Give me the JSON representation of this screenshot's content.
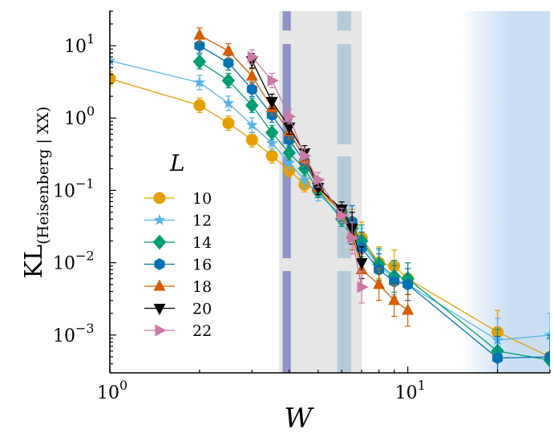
{
  "chart_data": {
    "type": "line",
    "xlabel": "W",
    "ylabel": "KL",
    "ylabel_subscript": "(Heisenberg | XX)",
    "xscale": "log",
    "yscale": "log",
    "xlim": [
      1,
      30
    ],
    "ylim": [
      0.0003,
      30
    ],
    "xticks": [
      {
        "value": 1,
        "base": "10",
        "exp": "0"
      },
      {
        "value": 10,
        "base": "10",
        "exp": "1"
      }
    ],
    "yticks": [
      {
        "value": 0.001,
        "base": "10",
        "exp": "−3"
      },
      {
        "value": 0.01,
        "base": "10",
        "exp": "−2"
      },
      {
        "value": 0.1,
        "base": "10",
        "exp": "−1"
      },
      {
        "value": 1,
        "base": "10",
        "exp": "0"
      },
      {
        "value": 10,
        "base": "10",
        "exp": "1"
      }
    ],
    "legend_title": "L",
    "legend_position": "center-left",
    "bands": [
      {
        "name": "grey-region",
        "x0": 3.7,
        "x1": 7.0,
        "color": "#e6e6e6"
      },
      {
        "name": "purple-dashed-band",
        "x0": 3.8,
        "x1": 4.05,
        "color": "#8f93c6",
        "dashed": true
      },
      {
        "name": "teal-dashed-band",
        "x0": 5.8,
        "x1": 6.45,
        "color": "#b5ccd8",
        "dashed": true
      },
      {
        "name": "blue-gradient-region",
        "x0": 15,
        "x1": 30,
        "color": "#c9def3",
        "gradient": true
      }
    ],
    "series": [
      {
        "name": "10",
        "color": "#e69f00",
        "marker": "circle",
        "x": [
          1,
          2,
          2.5,
          3,
          3.5,
          4,
          4.5,
          5,
          6,
          6.5,
          7,
          8,
          9,
          10,
          20,
          30
        ],
        "y": [
          3.5,
          1.5,
          0.85,
          0.5,
          0.3,
          0.19,
          0.12,
          0.1,
          0.05,
          0.033,
          0.022,
          0.01,
          0.009,
          0.006,
          0.0011,
          0.0005
        ]
      },
      {
        "name": "12",
        "color": "#56b4e9",
        "marker": "star",
        "x": [
          1,
          2,
          2.5,
          3,
          3.5,
          4,
          4.5,
          5,
          6,
          6.5,
          7,
          8,
          9,
          10,
          20,
          30
        ],
        "y": [
          6.2,
          3.1,
          1.6,
          0.8,
          0.45,
          0.24,
          0.14,
          0.09,
          0.045,
          0.03,
          0.018,
          0.009,
          0.006,
          0.005,
          0.00085,
          0.001
        ]
      },
      {
        "name": "14",
        "color": "#009e73",
        "marker": "diamond",
        "x": [
          2,
          2.5,
          3,
          3.5,
          4,
          4.5,
          5,
          6,
          6.5,
          7,
          8,
          9,
          10,
          20,
          30
        ],
        "y": [
          6,
          3.3,
          1.5,
          0.63,
          0.33,
          0.2,
          0.1,
          0.04,
          0.03,
          0.02,
          0.0095,
          0.0065,
          0.006,
          0.0006,
          0.00045
        ]
      },
      {
        "name": "16",
        "color": "#0072b2",
        "marker": "hexagon",
        "x": [
          2,
          2.5,
          3,
          3.5,
          4,
          4.5,
          5,
          6,
          6.5,
          7,
          8,
          9,
          10,
          20,
          30
        ],
        "y": [
          10,
          5.8,
          2.5,
          1.1,
          0.5,
          0.25,
          0.11,
          0.05,
          0.037,
          0.016,
          0.008,
          0.0055,
          0.005,
          0.00048,
          0.0005
        ]
      },
      {
        "name": "18",
        "color": "#d55e00",
        "marker": "triangle-up",
        "x": [
          2,
          2.5,
          3,
          3.5,
          4,
          4.5,
          5,
          6,
          6.5,
          7,
          8,
          9,
          10
        ],
        "y": [
          14,
          8.5,
          3.8,
          1.4,
          0.65,
          0.28,
          0.11,
          0.05,
          0.025,
          0.008,
          0.005,
          0.003,
          0.0022
        ]
      },
      {
        "name": "20",
        "color": "#000000",
        "marker": "triangle-down",
        "x": [
          3,
          3.5,
          4,
          4.5,
          5,
          6,
          6.5,
          7
        ],
        "y": [
          6.2,
          1.7,
          0.75,
          0.33,
          0.11,
          0.055,
          0.03,
          0.01
        ]
      },
      {
        "name": "22",
        "color": "#cc79a7",
        "marker": "triangle-right",
        "x": [
          3,
          3.5,
          4,
          4.5,
          5,
          6,
          6.5,
          7
        ],
        "y": [
          7,
          3.3,
          1.05,
          0.3,
          0.14,
          0.045,
          0.022,
          0.0046
        ]
      }
    ]
  }
}
